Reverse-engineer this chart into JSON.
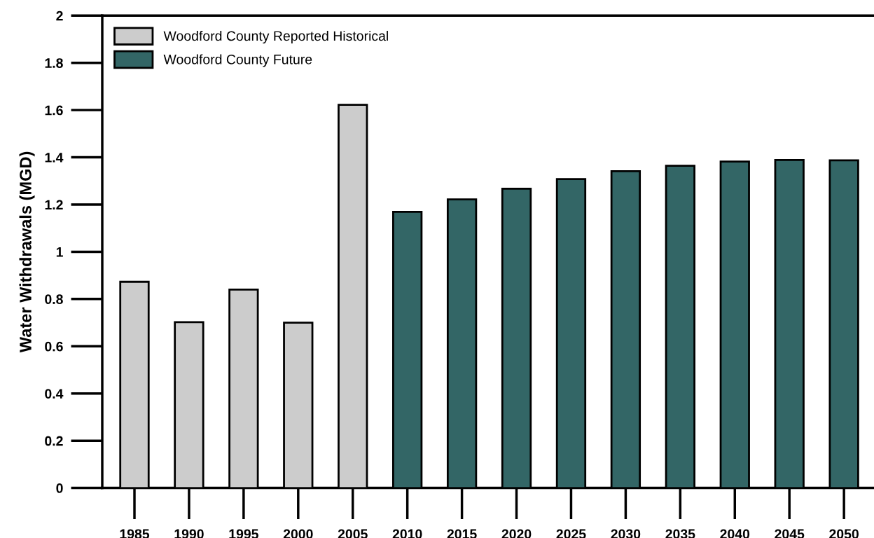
{
  "chart_data": {
    "type": "bar",
    "ylabel": "Water Withdrawals (MGD)",
    "categories": [
      "1985",
      "1990",
      "1995",
      "2000",
      "2005",
      "2010",
      "2015",
      "2020",
      "2025",
      "2030",
      "2035",
      "2040",
      "2045",
      "2050"
    ],
    "series": [
      {
        "name": "Woodford County Reported Historical",
        "color": "#cccccc",
        "values": [
          0.873,
          0.702,
          0.84,
          0.7,
          1.622,
          null,
          null,
          null,
          null,
          null,
          null,
          null,
          null,
          null
        ]
      },
      {
        "name": "Woodford County Future",
        "color": "#336666",
        "values": [
          null,
          null,
          null,
          null,
          null,
          1.169,
          1.222,
          1.267,
          1.308,
          1.341,
          1.364,
          1.382,
          1.389,
          1.387
        ]
      }
    ],
    "ylim": [
      0,
      2
    ],
    "yticks": [
      0,
      0.2,
      0.4,
      0.6,
      0.8,
      1,
      1.2,
      1.4,
      1.6,
      1.8,
      2
    ],
    "grid": false,
    "legend": "top left"
  }
}
